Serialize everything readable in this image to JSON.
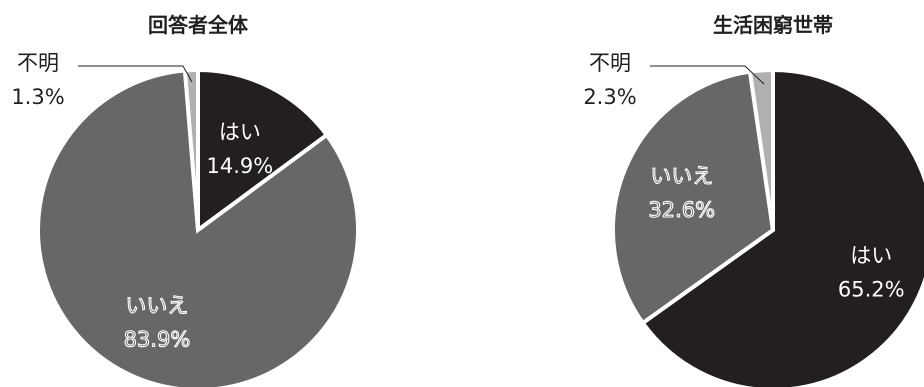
{
  "chart_data": [
    {
      "type": "pie",
      "title": "回答者全体",
      "slices": [
        {
          "label": "はい",
          "value": 14.9,
          "value_text": "14.9%",
          "color": "#231f20",
          "label_color": "#ffffff",
          "label_style": "plain"
        },
        {
          "label": "いいえ",
          "value": 83.9,
          "value_text": "83.9%",
          "color": "#676767",
          "label_color": "#ffffff",
          "label_style": "outlined"
        },
        {
          "label": "不明",
          "value": 1.3,
          "value_text": "1.3%",
          "color": "#b0b0b0",
          "label_color": "#231f20",
          "label_style": "callout"
        }
      ],
      "start": "12 o'clock",
      "direction": "clockwise"
    },
    {
      "type": "pie",
      "title": "生活困窮世帯",
      "slices": [
        {
          "label": "はい",
          "value": 65.2,
          "value_text": "65.2%",
          "color": "#231f20",
          "label_color": "#ffffff",
          "label_style": "plain"
        },
        {
          "label": "いいえ",
          "value": 32.6,
          "value_text": "32.6%",
          "color": "#676767",
          "label_color": "#ffffff",
          "label_style": "outlined"
        },
        {
          "label": "不明",
          "value": 2.3,
          "value_text": "2.3%",
          "color": "#b0b0b0",
          "label_color": "#231f20",
          "label_style": "callout"
        }
      ],
      "start": "12 o'clock",
      "direction": "clockwise"
    }
  ]
}
